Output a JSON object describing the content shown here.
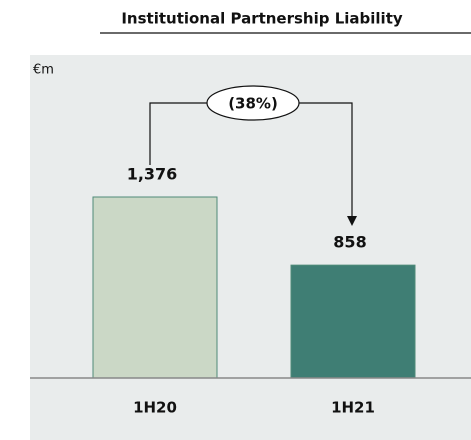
{
  "chart_data": {
    "type": "bar",
    "title": "Institutional Partnership Liability",
    "unit_label": "€m",
    "annotation": "(38%)",
    "categories": [
      "1H20",
      "1H21"
    ],
    "values": [
      1376,
      858
    ],
    "value_labels": [
      "1,376",
      "858"
    ],
    "colors": [
      "#cbd8c6",
      "#3f7e74"
    ],
    "edge_color": "#4f8a78"
  }
}
